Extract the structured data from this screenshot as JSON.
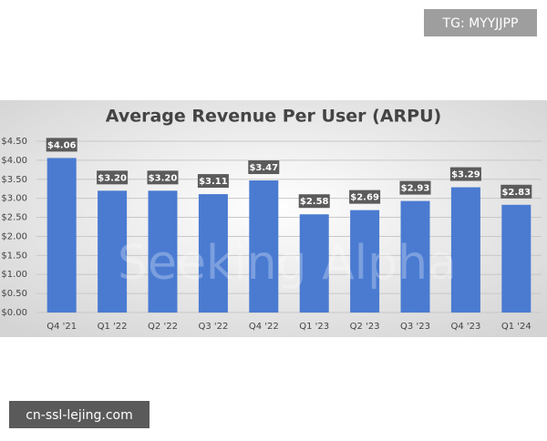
{
  "header_tag": "TG: MYYJJPP",
  "footer_tag": "cn-ssl-lejing.com",
  "chart_data": {
    "type": "bar",
    "title": "Average Revenue Per User (ARPU)",
    "watermark": "Seeking Alpha",
    "categories": [
      "Q4 '21",
      "Q1 '22",
      "Q2 '22",
      "Q3 '22",
      "Q4 '22",
      "Q1 '23",
      "Q2 '23",
      "Q3 '23",
      "Q4 '23",
      "Q1 '24"
    ],
    "values": [
      4.06,
      3.2,
      3.2,
      3.11,
      3.47,
      2.58,
      2.69,
      2.93,
      3.29,
      2.83
    ],
    "value_labels": [
      "$4.06",
      "$3.20",
      "$3.20",
      "$3.11",
      "$3.47",
      "$2.58",
      "$2.69",
      "$2.93",
      "$3.29",
      "$2.83"
    ],
    "color": "#4a7bd1",
    "ylim": [
      0,
      4.5
    ],
    "yticks": [
      {
        "value": 0,
        "label": "$0.00"
      },
      {
        "value": 0.5,
        "label": "$0.50"
      },
      {
        "value": 1,
        "label": "$1.00"
      },
      {
        "value": 1.5,
        "label": "$1.50"
      },
      {
        "value": 2,
        "label": "$2.00"
      },
      {
        "value": 2.5,
        "label": "$2.50"
      },
      {
        "value": 3,
        "label": "$3.00"
      },
      {
        "value": 3.5,
        "label": "$3.50"
      },
      {
        "value": 4,
        "label": "$4.00"
      },
      {
        "value": 4.5,
        "label": "$4.50"
      }
    ],
    "grid": true
  }
}
